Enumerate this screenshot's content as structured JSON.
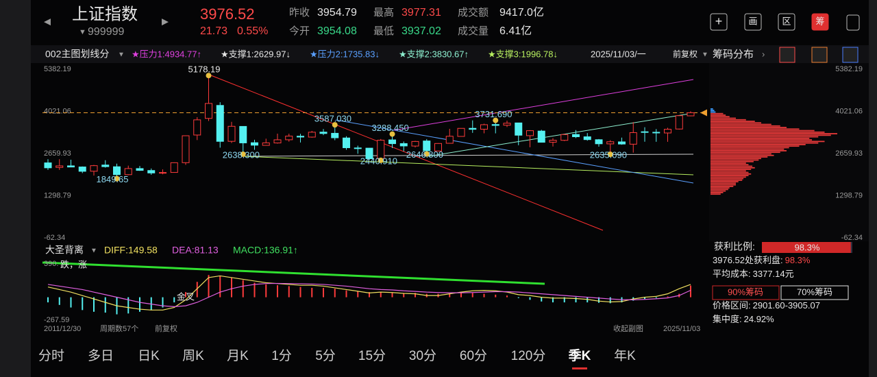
{
  "header": {
    "name": "上证指数",
    "code": "999999",
    "price": 3976.52,
    "change": 21.73,
    "change_pct": "0.55%",
    "fields": [
      {
        "label": "昨收",
        "value": "3954.79",
        "color": "#e6e6e6"
      },
      {
        "label": "最高",
        "value": "3977.31",
        "color": "#ff4a4a"
      },
      {
        "label": "成交额",
        "value": "9417.0亿",
        "color": "#e6e6e6"
      },
      {
        "label": "今开",
        "value": "3954.08",
        "color": "#39d98a"
      },
      {
        "label": "最低",
        "value": "3937.02",
        "color": "#39d98a"
      },
      {
        "label": "成交量",
        "value": "6.41亿",
        "color": "#e6e6e6"
      }
    ],
    "icons": [
      "画",
      "区",
      "筹"
    ]
  },
  "toolbar": {
    "indicator": "002主图划线分",
    "lines": [
      {
        "text": "★压力1:4934.77↑",
        "color": "#e040e0"
      },
      {
        "text": "★支撑1:2629.97↓",
        "color": "#e6e6e6"
      },
      {
        "text": "★压力2:1735.83↓",
        "color": "#5aa0ff"
      },
      {
        "text": "★支撑2:3830.67↑",
        "color": "#8ef0d0"
      },
      {
        "text": "★支撑3:1996.78↓",
        "color": "#b8f060"
      }
    ],
    "date": "2025/11/03/一",
    "adjust": "前复权",
    "panel": "筹码分布"
  },
  "chart_data": {
    "type": "candlestick",
    "ylim": [
      -62.34,
      5382.19
    ],
    "yticks": [
      5382.19,
      4021.06,
      2659.93,
      1298.79,
      -62.34
    ],
    "up_color": "#ff3b3b",
    "down_color": "#54f0f0",
    "open": [
      2359,
      2212,
      2263,
      2227,
      2089,
      2289,
      2234,
      1979,
      2175,
      2112,
      2028,
      2050,
      2365,
      3258,
      3795,
      4214,
      3054,
      3536,
      3010,
      2924,
      3002,
      3105,
      3220,
      3191,
      3352,
      3314,
      3163,
      2841,
      2834,
      2497,
      3101,
      2982,
      2902,
      3066,
      2743,
      2991,
      3213,
      3474,
      3446,
      3597,
      3575,
      3649,
      3237,
      3386,
      3026,
      3087,
      3276,
      3201,
      3107,
      2972,
      3037,
      2962,
      3364,
      3347,
      3324,
      3452,
      3877
    ],
    "high": [
      2478,
      2478,
      2461,
      2244,
      2292,
      2444,
      2334,
      2270,
      2259,
      2177,
      2147,
      2374,
      3239,
      3835,
      5178.19,
      4317,
      3684,
      3539,
      3105,
      3140,
      3301,
      3301,
      3295,
      3391,
      3450,
      3587.03,
      3220,
      2915,
      2839,
      3129,
      3288.45,
      3048,
      3069,
      3127,
      2995,
      3458,
      3474,
      3731,
      3624,
      3731.69,
      3723,
      3652,
      3415,
      3425,
      3158,
      3300,
      3418,
      3322,
      3128,
      3090,
      3175,
      3674,
      3509,
      3450,
      3492,
      3899,
      4025
    ],
    "low": [
      2132,
      2132,
      2242,
      2029,
      1949,
      2204,
      1849.65,
      1963,
      2101,
      1974,
      1991,
      2043,
      2296,
      3095,
      3710,
      2850,
      3001,
      2638.3,
      2781,
      2932,
      2980,
      3044,
      3016,
      3172,
      3254,
      3091,
      2782,
      2653,
      2449,
      2440.91,
      2838,
      2733,
      2857,
      2646.8,
      2742,
      2984,
      3209,
      3328,
      3312,
      3312,
      3515,
      2928,
      2863,
      3021,
      2886,
      3063,
      3159,
      3076,
      2882,
      2635.09,
      2945,
      2689,
      3041,
      3040,
      3040,
      3434,
      3862
    ],
    "close": [
      2199,
      2262,
      2225,
      2086,
      2269,
      2237,
      1979,
      2175,
      2116,
      2033,
      2048,
      2364,
      3235,
      3748,
      4277,
      3053,
      3539,
      3004,
      2930,
      3005,
      3104,
      3223,
      3192,
      3349,
      3307,
      3169,
      2847,
      2821,
      2494,
      3091,
      2979,
      2905,
      3050,
      2750,
      2985,
      3218,
      3473,
      3442,
      3591,
      3568,
      3640,
      3252,
      3399,
      3024,
      3089,
      3273,
      3202,
      3110,
      2975,
      3041,
      2967,
      3336,
      3352,
      3336,
      3444,
      3883,
      3976.52
    ],
    "annotations": [
      {
        "value": 5178.19,
        "label": "5178.19"
      },
      {
        "value": 1849.65,
        "label": "1849.65"
      },
      {
        "value": 2638.3,
        "label": "2638.300"
      },
      {
        "value": 3587.03,
        "label": "3587.030"
      },
      {
        "value": 2440.91,
        "label": "2440.910"
      },
      {
        "value": 3288.45,
        "label": "3288.450"
      },
      {
        "value": 2646.8,
        "label": "2646.800"
      },
      {
        "value": 3731.69,
        "label": "3731.690"
      },
      {
        "value": 2635.09,
        "label": "2635.090"
      }
    ],
    "chips": {
      "xlim": [
        0,
        100
      ],
      "prices": [
        1350,
        1400,
        1450,
        1500,
        1550,
        1600,
        1650,
        1700,
        1750,
        1800,
        1850,
        1900,
        1950,
        2000,
        2050,
        2100,
        2150,
        2200,
        2250,
        2300,
        2350,
        2400,
        2450,
        2500,
        2550,
        2600,
        2650,
        2700,
        2750,
        2800,
        2850,
        2900,
        2950,
        3000,
        3050,
        3100,
        3150,
        3200,
        3250,
        3300,
        3350,
        3400,
        3450,
        3500,
        3550,
        3600,
        3650,
        3700,
        3750,
        3800,
        3850,
        3900,
        3950,
        4000,
        4050,
        4100
      ],
      "values": [
        8,
        10,
        12,
        14,
        15,
        18,
        20,
        20,
        22,
        25,
        26,
        28,
        30,
        32,
        30,
        28,
        32,
        35,
        33,
        30,
        28,
        34,
        38,
        40,
        45,
        50,
        48,
        55,
        60,
        58,
        62,
        70,
        75,
        85,
        90,
        80,
        78,
        85,
        95,
        100,
        90,
        82,
        70,
        60,
        55,
        48,
        40,
        35,
        28,
        20,
        15,
        12,
        10,
        4,
        3,
        2
      ]
    },
    "macd": {
      "name": "大圣背离",
      "diff_label": "DIFF:149.58",
      "dea_label": "DEA:81.13",
      "macd_label": "MACD:136.91↑",
      "ylim": [
        -267.59,
        390
      ],
      "yticks": [
        {
          "value": 390,
          "label": "390."
        },
        -267.59
      ],
      "note": "跌，涨",
      "cross": "金叉",
      "hist": [
        -60,
        -90,
        -120,
        -150,
        -170,
        -180,
        -200,
        -190,
        -170,
        -150,
        -120,
        -60,
        60,
        180,
        260,
        250,
        230,
        200,
        170,
        150,
        140,
        130,
        120,
        110,
        110,
        100,
        80,
        70,
        60,
        60,
        55,
        50,
        50,
        40,
        40,
        40,
        50,
        50,
        40,
        30,
        20,
        -10,
        -30,
        -50,
        -60,
        -60,
        -60,
        -60,
        -65,
        -70,
        -60,
        -40,
        -20,
        -10,
        10,
        40,
        136.91
      ],
      "diff": [
        120,
        90,
        60,
        20,
        -20,
        -60,
        -100,
        -120,
        -140,
        -150,
        -150,
        -120,
        -30,
        100,
        230,
        250,
        230,
        210,
        190,
        170,
        160,
        150,
        140,
        140,
        130,
        110,
        90,
        70,
        50,
        60,
        55,
        45,
        40,
        20,
        20,
        40,
        60,
        75,
        80,
        75,
        60,
        30,
        20,
        0,
        -10,
        -10,
        -15,
        -25,
        -45,
        -55,
        -50,
        -20,
        0,
        10,
        40,
        100,
        149.58
      ],
      "dea": [
        150,
        130,
        110,
        90,
        60,
        30,
        0,
        -30,
        -60,
        -80,
        -100,
        -110,
        -100,
        -60,
        0,
        60,
        100,
        130,
        150,
        160,
        162,
        160,
        158,
        155,
        150,
        140,
        130,
        115,
        100,
        90,
        85,
        75,
        68,
        60,
        55,
        52,
        52,
        55,
        60,
        65,
        65,
        60,
        50,
        40,
        30,
        20,
        10,
        0,
        -10,
        -20,
        -28,
        -30,
        -25,
        -18,
        -8,
        20,
        81.13
      ]
    },
    "x_start": "2011/12/30",
    "periods": "周期数57个",
    "adjust": "前复权",
    "collapse": "收起副图",
    "x_end": "2025/11/03"
  },
  "stats": {
    "profit_label": "获利比例:",
    "profit_ratio": {
      "value": 98.3,
      "label": "98.3%"
    },
    "rows": [
      {
        "label": "3976.52处获利盘:",
        "value": "98.3%"
      },
      {
        "label": "平均成本:",
        "value": "3377.14元"
      }
    ],
    "chip90": "90%筹码",
    "chip70": "70%筹码",
    "rows2": [
      {
        "label": "价格区间:",
        "value": "2901.60-3905.07"
      },
      {
        "label": "集中度:",
        "value": "24.92%"
      }
    ]
  },
  "tabs": {
    "items": [
      "分时",
      "多日",
      "日K",
      "周K",
      "月K",
      "1分",
      "5分",
      "15分",
      "30分",
      "60分",
      "120分",
      "季K",
      "年K"
    ],
    "active": "季K"
  }
}
